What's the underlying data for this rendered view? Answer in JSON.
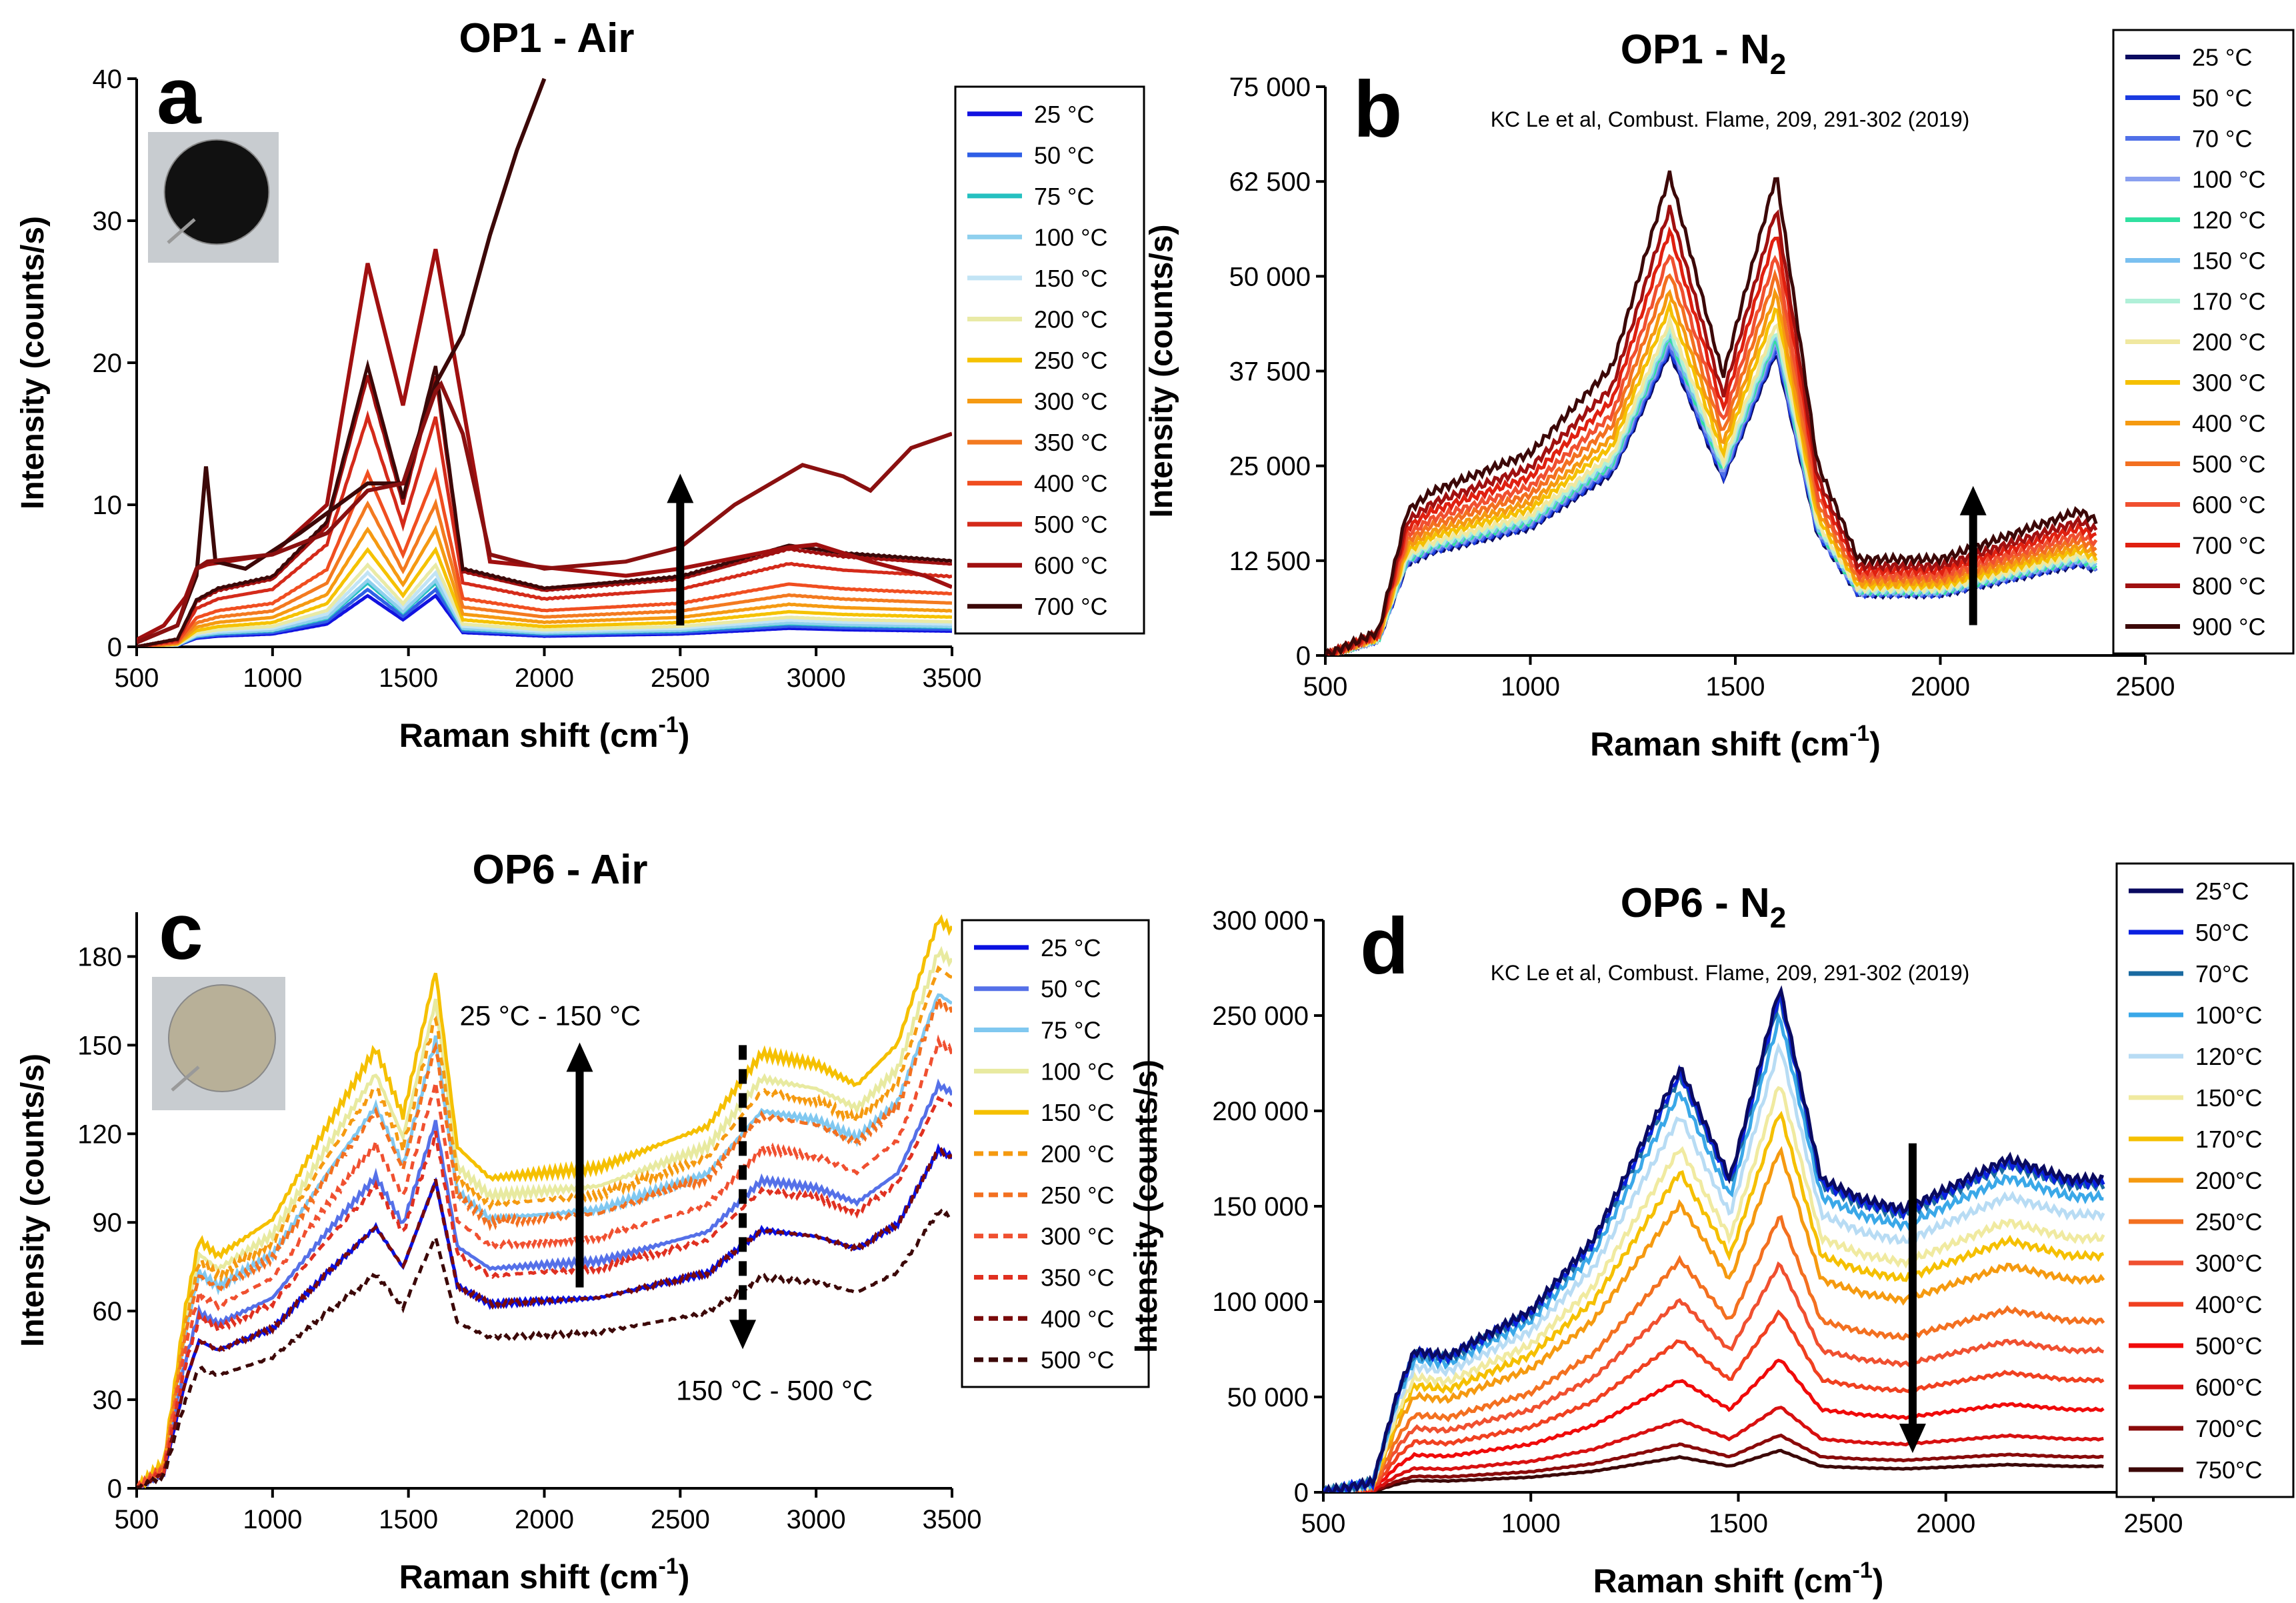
{
  "figure_title": "Temperature-dependent Raman spectra of OP1 and OP6 soot in air and N2",
  "chart_data": [
    {
      "id": "a",
      "type": "line",
      "panel_letter": "a",
      "title": "OP1 - Air",
      "title_sub": "",
      "xlabel": "Raman shift (cm",
      "xlabel_sup": "-1",
      "xlabel_end": ")",
      "ylabel": "Intensity (counts/s)",
      "xlim": [
        500,
        3500
      ],
      "ylim": [
        0,
        40
      ],
      "xticks": [
        500,
        1000,
        1500,
        2000,
        2500,
        3000,
        3500
      ],
      "yticks": [
        0,
        10,
        20,
        30,
        40
      ],
      "ytick_labels": [
        "0",
        "10",
        "20",
        "30",
        "40"
      ],
      "legend_position": "right",
      "legend": [
        "25 °C",
        "50 °C",
        "75 °C",
        "100 °C",
        "150 °C",
        "200 °C",
        "250 °C",
        "300 °C",
        "350 °C",
        "400 °C",
        "500 °C",
        "600 °C",
        "700 °C"
      ],
      "colors": [
        "#1212e0",
        "#2f5fe6",
        "#25c0c0",
        "#8fd0ee",
        "#c2e4f5",
        "#e9eaa6",
        "#f5c200",
        "#f59a12",
        "#f37a20",
        "#f04e20",
        "#d42a1a",
        "#a01010",
        "#3c0808"
      ],
      "dashed": [
        false,
        false,
        false,
        false,
        false,
        false,
        false,
        false,
        false,
        false,
        false,
        false,
        false
      ],
      "thin_count": 13,
      "annotation_arrow": {
        "direction": "up",
        "x": 2500,
        "y_from": 1.5,
        "y_to": 12
      },
      "inset_image": "black soot filter photo",
      "shapes": {
        "x": [
          500,
          650,
          720,
          800,
          1000,
          1200,
          1350,
          1480,
          1600,
          1700,
          2000,
          2500,
          2900,
          3100,
          3500
        ],
        "y": [
          0.0,
          0.1,
          0.6,
          0.75,
          0.9,
          1.6,
          3.6,
          1.9,
          3.6,
          1.0,
          0.75,
          0.9,
          1.3,
          1.2,
          1.1
        ]
      },
      "scales": [
        1.0,
        1.12,
        1.25,
        1.3,
        1.45,
        1.6,
        1.9,
        2.3,
        2.8,
        3.4,
        4.5,
        5.3,
        5.5
      ],
      "series": [
        {
          "name": "600 °C",
          "x": [
            500,
            600,
            680,
            720,
            760,
            1000,
            1200,
            1350,
            1480,
            1600,
            1800,
            2300,
            2500,
            2900,
            3000,
            3200,
            3400,
            3500
          ],
          "y": [
            0.5,
            1.5,
            3.5,
            5.5,
            5.8,
            6.5,
            10,
            27,
            17,
            28,
            6,
            5,
            5.5,
            7,
            7.2,
            6,
            5,
            4.2
          ]
        },
        {
          "name": "700 °C",
          "x": [
            500,
            650,
            720,
            755,
            790,
            900,
            1100,
            1350,
            1480,
            1600,
            1700,
            1800,
            1900,
            2000
          ],
          "y": [
            0.3,
            1.5,
            5,
            12.7,
            6,
            5.5,
            8,
            11.5,
            11.5,
            18.5,
            22,
            29,
            35,
            40
          ]
        },
        {
          "name": "600 °C (upper)",
          "x": [
            500,
            650,
            720,
            760,
            1000,
            1200,
            1350,
            1480,
            1600,
            1620,
            1700,
            1800,
            2000,
            2300,
            2500,
            2700,
            2950,
            3100,
            3200,
            3350,
            3500
          ],
          "y": [
            0.3,
            1.5,
            5.5,
            6.0,
            6.5,
            8,
            11,
            11.5,
            18,
            18.5,
            15,
            6.5,
            5.5,
            6,
            7,
            10,
            12.8,
            12,
            11,
            14,
            15
          ]
        }
      ]
    },
    {
      "id": "b",
      "type": "line",
      "panel_letter": "b",
      "title": "OP1 - N",
      "title_sub": "2",
      "citation": "KC Le et al, Combust. Flame, 209, 291-302 (2019)",
      "xlabel": "Raman shift (cm",
      "xlabel_sup": "-1",
      "xlabel_end": ")",
      "ylabel": "Intensity (counts/s)",
      "xlim": [
        500,
        2500
      ],
      "ylim": [
        0,
        75000
      ],
      "xticks": [
        500,
        1000,
        1500,
        2000,
        2500
      ],
      "yticks": [
        0,
        12500,
        25000,
        37500,
        50000,
        62500,
        75000
      ],
      "ytick_labels": [
        "0",
        "12 500",
        "25 000",
        "37 500",
        "50 000",
        "62 500",
        "75 000"
      ],
      "legend_position": "right",
      "legend": [
        "25 °C",
        "50 °C",
        "70 °C",
        "100 °C",
        "120 °C",
        "150 °C",
        "170 °C",
        "200 °C",
        "300 °C",
        "400 °C",
        "500 °C",
        "600 °C",
        "700 °C",
        "800 °C",
        "900 °C"
      ],
      "colors": [
        "#0a0a60",
        "#1a3ae0",
        "#5070e8",
        "#8aa0f0",
        "#30e0a0",
        "#7ac0f0",
        "#b0f0d8",
        "#f0e8a0",
        "#f5c000",
        "#f59a10",
        "#f37020",
        "#f05030",
        "#e02010",
        "#a01010",
        "#3c0808"
      ],
      "dashed": [
        false,
        false,
        false,
        false,
        false,
        false,
        false,
        false,
        false,
        false,
        false,
        false,
        false,
        false,
        false
      ],
      "annotation_arrow": {
        "direction": "up",
        "x": 2080,
        "y_from": 4000,
        "y_to": 22000
      },
      "shapes": {
        "x": [
          500,
          630,
          700,
          760,
          1000,
          1200,
          1340,
          1470,
          1600,
          1700,
          1800,
          2000,
          2340,
          2380
        ],
        "y": [
          0,
          0.05,
          0.3,
          0.34,
          0.42,
          0.6,
          1.0,
          0.58,
          1.0,
          0.4,
          0.2,
          0.2,
          0.3,
          0.28
        ]
      },
      "scales": [
        40000,
        40500,
        41000,
        41500,
        42000,
        42500,
        43000,
        44000,
        46000,
        48000,
        50500,
        53000,
        56000,
        59000,
        63500
      ]
    },
    {
      "id": "c",
      "type": "line",
      "panel_letter": "c",
      "title": "OP6 - Air",
      "title_sub": "",
      "xlabel": "Raman shift (cm",
      "xlabel_sup": "-1",
      "xlabel_end": ")",
      "ylabel": "Intensity (counts/s)",
      "xlim": [
        500,
        3500
      ],
      "ylim": [
        0,
        195
      ],
      "xticks": [
        500,
        1000,
        1500,
        2000,
        2500,
        3000,
        3500
      ],
      "yticks": [
        0,
        30,
        60,
        90,
        120,
        150,
        180
      ],
      "ytick_labels": [
        "0",
        "30",
        "60",
        "90",
        "120",
        "150",
        "180"
      ],
      "legend_position": "right",
      "legend": [
        "25 °C",
        "50 °C",
        "75 °C",
        "100 °C",
        "150 °C",
        "200 °C",
        "250 °C",
        "300 °C",
        "350 °C",
        "400 °C",
        "500 °C"
      ],
      "colors": [
        "#0a10e0",
        "#5570e8",
        "#80c8f0",
        "#e8eaa0",
        "#f5c000",
        "#f59a10",
        "#f37020",
        "#f05030",
        "#e03020",
        "#7a0a0a",
        "#3c0808"
      ],
      "dashed": [
        false,
        false,
        false,
        false,
        false,
        true,
        true,
        true,
        true,
        true,
        true
      ],
      "annotation_up": {
        "label": "25 °C - 150 °C",
        "x": 2130,
        "y_from": 68,
        "y_to": 150
      },
      "annotation_down": {
        "label": "150 °C - 500 °C",
        "x": 2730,
        "y_from": 150,
        "y_to": 48
      },
      "inset_image": "light soot filter photo",
      "shapes": {
        "x": [
          500,
          600,
          680,
          730,
          800,
          1000,
          1200,
          1380,
          1480,
          1600,
          1680,
          1800,
          2200,
          2600,
          2800,
          3000,
          3150,
          3300,
          3450,
          3500
        ],
        "y": [
          0,
          0.05,
          0.35,
          0.48,
          0.45,
          0.52,
          0.7,
          0.85,
          0.72,
          1.0,
          0.66,
          0.6,
          0.62,
          0.7,
          0.84,
          0.82,
          0.78,
          0.86,
          1.1,
          1.08
        ]
      },
      "scales": [
        104,
        124,
        152,
        165,
        175,
        160,
        150,
        137,
        120,
        104,
        85
      ]
    },
    {
      "id": "d",
      "type": "line",
      "panel_letter": "d",
      "title": "OP6 - N",
      "title_sub": "2",
      "citation": "KC Le et al, Combust. Flame, 209, 291-302 (2019)",
      "xlabel": "Raman shift (cm",
      "xlabel_sup": "-1",
      "xlabel_end": ")",
      "ylabel": "Intensity (counts/s)",
      "xlim": [
        500,
        2500
      ],
      "ylim": [
        0,
        300000
      ],
      "xticks": [
        500,
        1000,
        1500,
        2000,
        2500
      ],
      "yticks": [
        0,
        50000,
        100000,
        150000,
        200000,
        250000,
        300000
      ],
      "ytick_labels": [
        "0",
        "50 000",
        "100 000",
        "150 000",
        "200 000",
        "250 000",
        "300 000"
      ],
      "legend_position": "right",
      "legend": [
        "25°C",
        "50°C",
        "70°C",
        "100°C",
        "120°C",
        "150°C",
        "170°C",
        "200°C",
        "250°C",
        "300°C",
        "400°C",
        "500°C",
        "600°C",
        "700°C",
        "750°C"
      ],
      "colors": [
        "#0a0a60",
        "#0a20e0",
        "#1a6aa0",
        "#3aa8e8",
        "#b8dcf4",
        "#f0eaa0",
        "#f5c000",
        "#f59a10",
        "#f37020",
        "#f05030",
        "#f04020",
        "#f00a0a",
        "#d81010",
        "#8a0a0a",
        "#3c0808"
      ],
      "dashed": [
        false,
        false,
        false,
        false,
        false,
        false,
        false,
        false,
        false,
        false,
        false,
        false,
        false,
        false,
        false
      ],
      "annotation_arrow": {
        "direction": "down",
        "x": 1920,
        "y_from": 183000,
        "y_to": 22000
      },
      "shapes": {
        "x": [
          500,
          620,
          680,
          720,
          800,
          1000,
          1150,
          1360,
          1480,
          1600,
          1700,
          1800,
          1900,
          2000,
          2150,
          2300,
          2380
        ],
        "y": [
          0,
          0.02,
          0.2,
          0.28,
          0.27,
          0.36,
          0.5,
          0.84,
          0.62,
          1.0,
          0.62,
          0.58,
          0.56,
          0.6,
          0.66,
          0.62,
          0.62
        ]
      },
      "scales": [
        265000,
        262000,
        260000,
        250000,
        235000,
        215000,
        200000,
        180000,
        145000,
        120000,
        95000,
        70000,
        45000,
        30000,
        22000
      ]
    }
  ]
}
